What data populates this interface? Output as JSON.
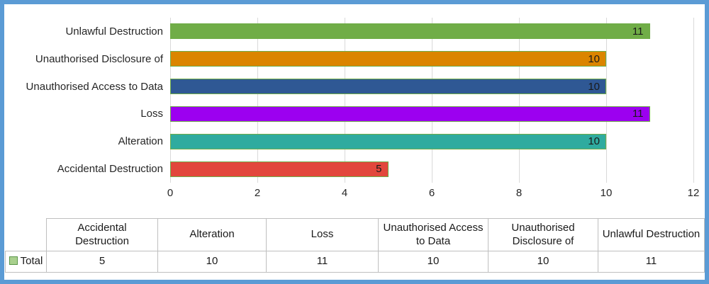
{
  "chart": {
    "chart_data": {
      "type": "bar",
      "orientation": "horizontal",
      "title": "",
      "xlabel": "",
      "ylabel": "",
      "series_name": "Total",
      "categories": [
        "Accidental Destruction",
        "Alteration",
        "Loss",
        "Unauthorised Access to Data",
        "Unauthorised Disclosure of",
        "Unlawful Destruction"
      ],
      "values": [
        5,
        10,
        11,
        10,
        10,
        11
      ],
      "bar_value_labels": [
        "5",
        "10",
        "11",
        "10",
        "10",
        "11"
      ],
      "display_order_top_to_bottom": [
        "Unlawful Destruction",
        "Unauthorised Disclosure of",
        "Unauthorised Access to Data",
        "Loss",
        "Alteration",
        "Accidental Destruction"
      ],
      "xlim": [
        0,
        12
      ],
      "xticks": [
        0,
        2,
        4,
        6,
        8,
        10,
        12
      ],
      "xtick_labels": [
        "0",
        "2",
        "4",
        "6",
        "8",
        "10",
        "12"
      ],
      "grid": "vertical-only",
      "bar_colors": [
        "#e2473c",
        "#2fab9f",
        "#9c00f0",
        "#2f5894",
        "#db8500",
        "#70ad47"
      ],
      "bar_border_color": "#70ad47",
      "legend_position": "table-bottom-left"
    },
    "legend": {
      "label": "Total",
      "swatch_fill": "#a9d08e",
      "swatch_border": "#5a9648"
    },
    "table": {
      "row_label": "Total",
      "column_headers": [
        "Accidental Destruction",
        "Alteration",
        "Loss",
        "Unauthorised Access to Data",
        "Unauthorised Disclosure of",
        "Unlawful Destruction"
      ],
      "values": [
        "5",
        "10",
        "11",
        "10",
        "10",
        "11"
      ]
    },
    "colors": {
      "frame_border": "#5b9bd5",
      "gridline": "#d9d9d9",
      "table_border": "#bfbfbf",
      "text": "#262626",
      "bar_value_text": "#1a1a1a"
    }
  }
}
